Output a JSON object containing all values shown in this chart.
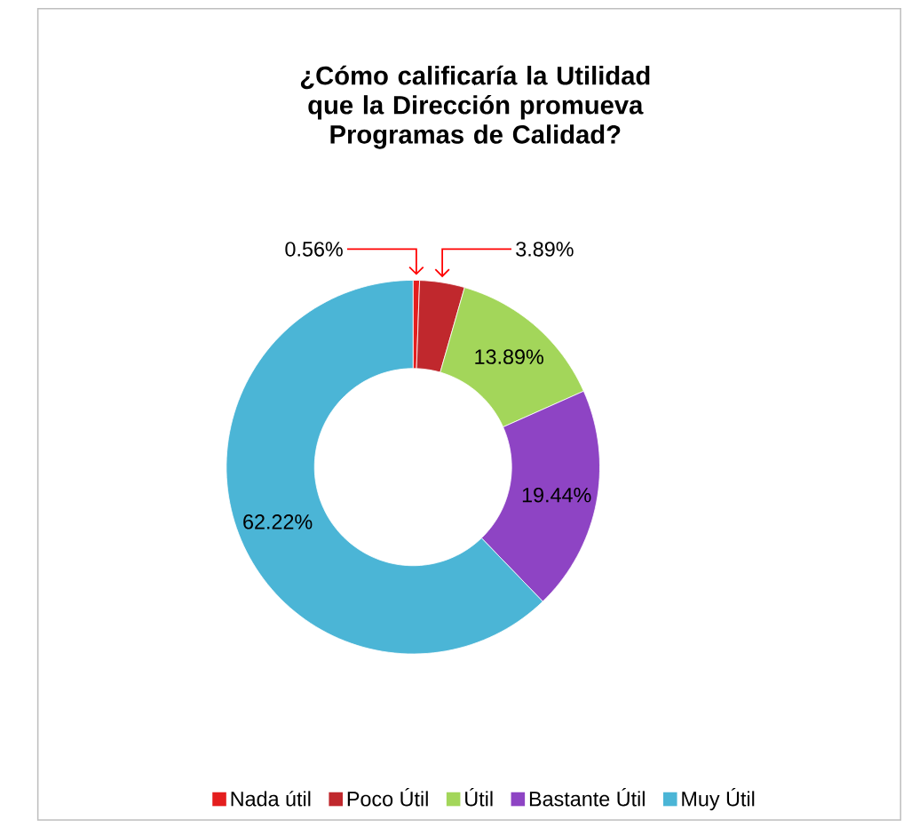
{
  "chart_data": {
    "type": "donut",
    "title": "¿Cómo calificaría la Utilidad que la Dirección promueva Programas de Calidad?",
    "categories": [
      "Nada útil",
      "Poco Útil",
      "Útil",
      "Bastante Útil",
      "Muy Útil"
    ],
    "values": [
      0.56,
      3.89,
      13.89,
      19.44,
      62.22
    ],
    "value_labels": [
      "0.56%",
      "3.89%",
      "13.89%",
      "19.44%",
      "62.22%"
    ],
    "colors": [
      "#e41e1e",
      "#c0282d",
      "#a3d65a",
      "#8e44c4",
      "#4bb5d6"
    ],
    "legend": "bottom"
  }
}
